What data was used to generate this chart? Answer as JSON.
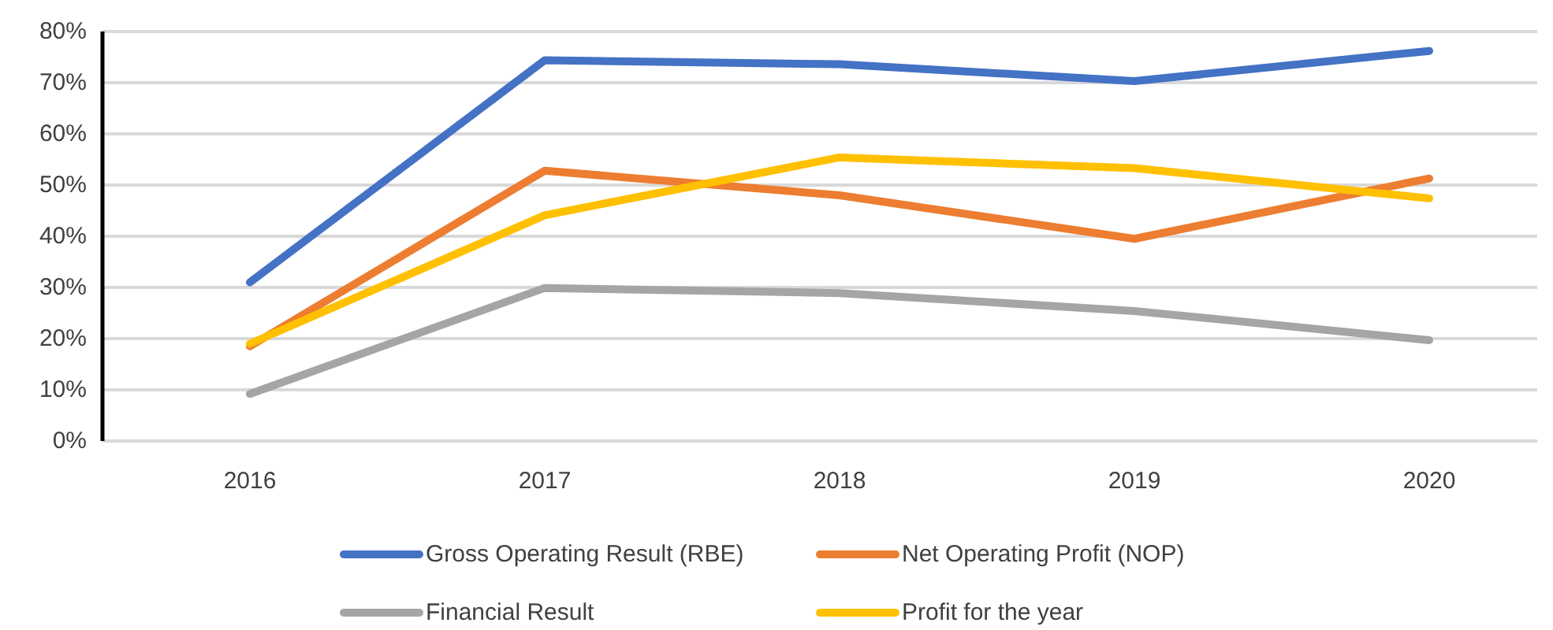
{
  "chart_data": {
    "type": "line",
    "categories": [
      "2016",
      "2017",
      "2018",
      "2019",
      "2020"
    ],
    "series": [
      {
        "name": "Gross Operating Result (RBE)",
        "color": "#4472c4",
        "values": [
          31,
          74.4,
          73.6,
          70.3,
          76.2
        ]
      },
      {
        "name": "Net Operating Profit (NOP)",
        "color": "#ed7d31",
        "values": [
          18.5,
          52.8,
          48,
          39.5,
          51.3
        ]
      },
      {
        "name": "Financial Result",
        "color": "#a5a5a5",
        "values": [
          9.2,
          29.9,
          28.9,
          25.4,
          19.7
        ]
      },
      {
        "name": "Profit for the year",
        "color": "#ffc000",
        "values": [
          19,
          44.1,
          55.4,
          53.3,
          47.4
        ]
      }
    ],
    "ylim": [
      0,
      80
    ],
    "yticks": [
      {
        "value": 0,
        "label": "0%"
      },
      {
        "value": 10,
        "label": "10%"
      },
      {
        "value": 20,
        "label": "20%"
      },
      {
        "value": 30,
        "label": "30%"
      },
      {
        "value": 40,
        "label": "40%"
      },
      {
        "value": 50,
        "label": "50%"
      },
      {
        "value": 60,
        "label": "60%"
      },
      {
        "value": 70,
        "label": "70%"
      },
      {
        "value": 80,
        "label": "80%"
      }
    ],
    "grid": "y",
    "legend": "bottom",
    "marker": "none",
    "line_style": "solid"
  }
}
